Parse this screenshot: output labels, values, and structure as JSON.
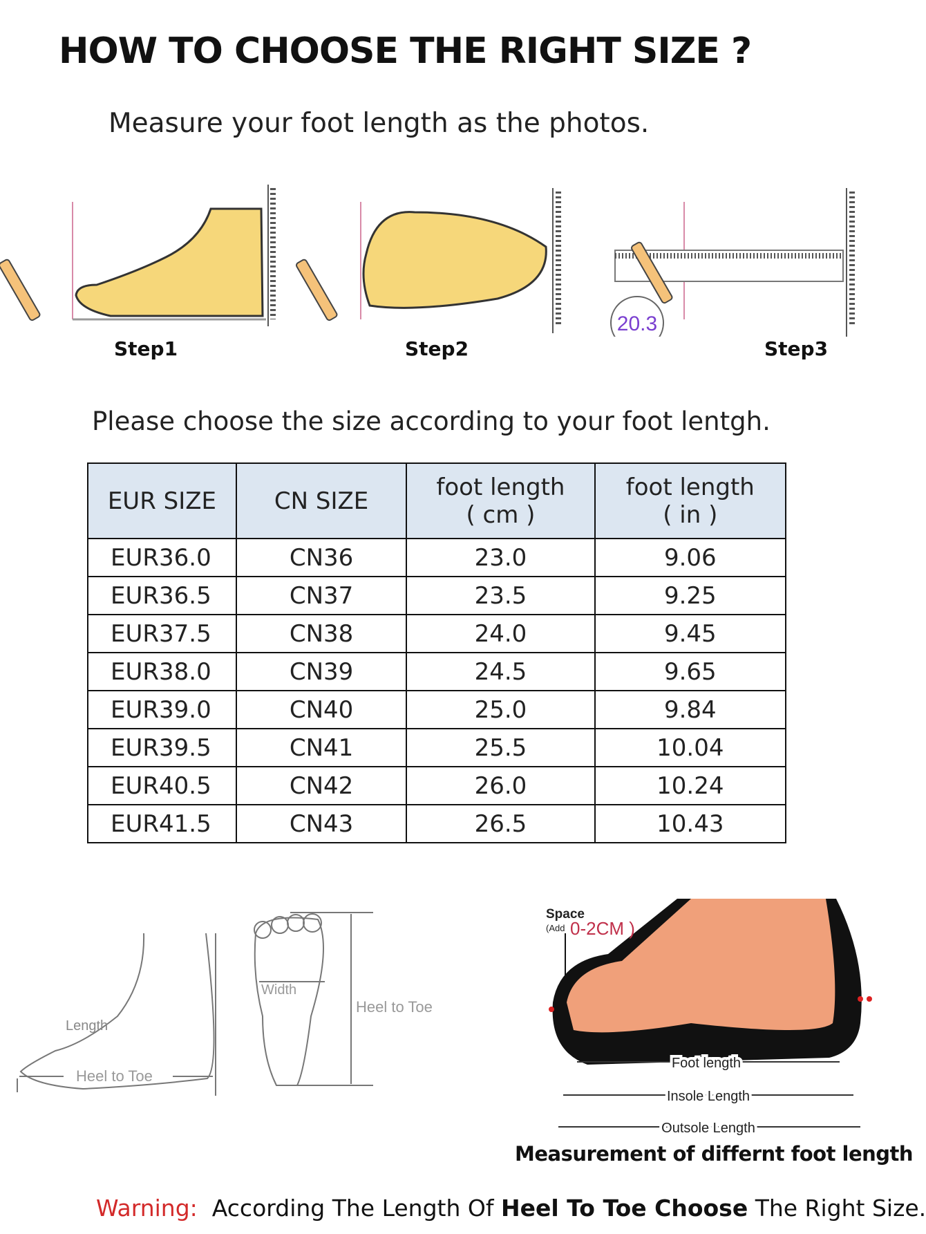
{
  "title": "HOW TO CHOOSE THE RIGHT SIZE ?",
  "subtitle": "Measure your foot length as the photos.",
  "steps": [
    "Step1",
    "Step2",
    "Step3"
  ],
  "step3_reading": "20.3",
  "instruction": "Please choose the size according to your foot lentgh.",
  "table": {
    "headers": [
      "EUR SIZE",
      "CN SIZE",
      "foot length",
      "( cm )",
      "foot length",
      "( in )"
    ],
    "rows": [
      [
        "EUR36.0",
        "CN36",
        "23.0",
        "9.06"
      ],
      [
        "EUR36.5",
        "CN37",
        "23.5",
        "9.25"
      ],
      [
        "EUR37.5",
        "CN38",
        "24.0",
        "9.45"
      ],
      [
        "EUR38.0",
        "CN39",
        "24.5",
        "9.65"
      ],
      [
        "EUR39.0",
        "CN40",
        "25.0",
        "9.84"
      ],
      [
        "EUR39.5",
        "CN41",
        "25.5",
        "10.04"
      ],
      [
        "EUR40.5",
        "CN42",
        "26.0",
        "10.24"
      ],
      [
        "EUR41.5",
        "CN43",
        "26.5",
        "10.43"
      ]
    ],
    "header_bg": "#dce6f1"
  },
  "diagram_left": {
    "length": "Length",
    "heel_to_toe": "Heel to Toe",
    "width": "Width",
    "heel_to_toe_2": "Heel to Toe"
  },
  "diagram_right": {
    "space": "Space",
    "add": "(Add",
    "space_value": "0-2CM )",
    "foot_length": "Foot length",
    "insole_length": "Insole Length",
    "outsole_length": "Outsole Length"
  },
  "measurement_caption": "Measurement of differnt foot length",
  "warning": {
    "label": "Warning:",
    "text1": "According The Length Of ",
    "bold": "Heel To Toe Choose",
    "text2": " The Right Size.",
    "color": "#d32a2a"
  }
}
